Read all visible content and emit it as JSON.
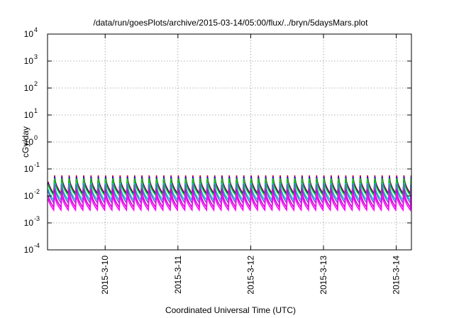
{
  "chart_data": {
    "type": "line",
    "title": "/data/run/goesPlots/archive/2015-03-14/05:00/flux/../bryn/5daysMars.plot",
    "xlabel": "Coordinated Universal Time (UTC)",
    "ylabel": "cGy/day",
    "yscale": "log",
    "ylim": [
      0.0001,
      10000
    ],
    "xlim": [
      "2015-03-09T05:00",
      "2015-03-14T05:00"
    ],
    "xticks": [
      "2015-3-10",
      "2015-3-11",
      "2015-3-12",
      "2015-3-13",
      "2015-3-14"
    ],
    "yticks": [
      {
        "base": "10",
        "exp": "-4"
      },
      {
        "base": "10",
        "exp": "-3"
      },
      {
        "base": "10",
        "exp": "-2"
      },
      {
        "base": "10",
        "exp": "-1"
      },
      {
        "base": "10",
        "exp": "0"
      },
      {
        "base": "10",
        "exp": "1"
      },
      {
        "base": "10",
        "exp": "2"
      },
      {
        "base": "10",
        "exp": "3"
      },
      {
        "base": "10",
        "exp": "4"
      }
    ],
    "grid": true,
    "cycles_per_day": 10,
    "series": [
      {
        "color": "#ff0000",
        "peak": 0.058,
        "trough": 0.0125
      },
      {
        "color": "#0000ff",
        "peak": 0.052,
        "trough": 0.0115
      },
      {
        "color": "#00cc00",
        "peak": 0.045,
        "trough": 0.0105
      },
      {
        "color": "#00cccc",
        "peak": 0.03,
        "trough": 0.007
      },
      {
        "color": "#6666cc",
        "peak": 0.027,
        "trough": 0.0055
      },
      {
        "color": "#cc00cc",
        "peak": 0.018,
        "trough": 0.0038
      },
      {
        "color": "#ff00ff",
        "peak": 0.013,
        "trough": 0.003
      }
    ]
  }
}
